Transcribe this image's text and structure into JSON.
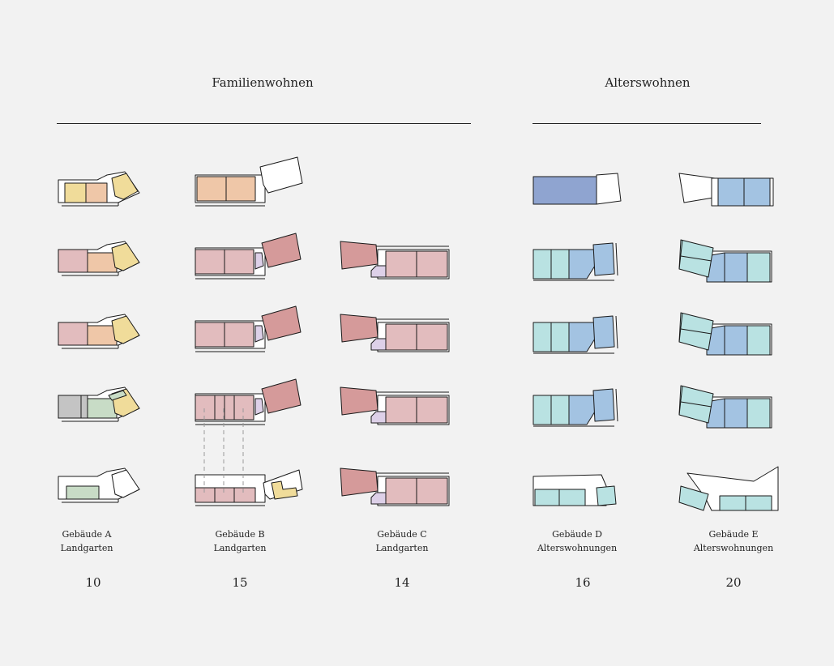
{
  "sections": {
    "family": "Familienwohnen",
    "senior": "Alterswohnen"
  },
  "buildings": [
    {
      "id": "A",
      "name": "Gebäude A",
      "sub": "Landgarten",
      "count": "10"
    },
    {
      "id": "B",
      "name": "Gebäude B",
      "sub": "Landgarten",
      "count": "15"
    },
    {
      "id": "C",
      "name": "Gebäude C",
      "sub": "Landgarten",
      "count": "14"
    },
    {
      "id": "D",
      "name": "Gebäude D",
      "sub": "Alterswohnungen",
      "count": "16"
    },
    {
      "id": "E",
      "name": "Gebäude E",
      "sub": "Alterswohnungen",
      "count": "20"
    }
  ],
  "colors": {
    "yellow": "#f0dc9a",
    "peach": "#efc7a8",
    "rose": "#e2bcbe",
    "red": "#d59a9a",
    "lilac": "#ddd0e8",
    "green": "#c8dcc6",
    "gray": "#c4c4c4",
    "navy": "#8fa4d0",
    "blue": "#a3c3e2",
    "cyan": "#b9e2e2",
    "white": "#ffffff",
    "stroke": "#1a1a1a",
    "background": "#f2f2f2"
  }
}
